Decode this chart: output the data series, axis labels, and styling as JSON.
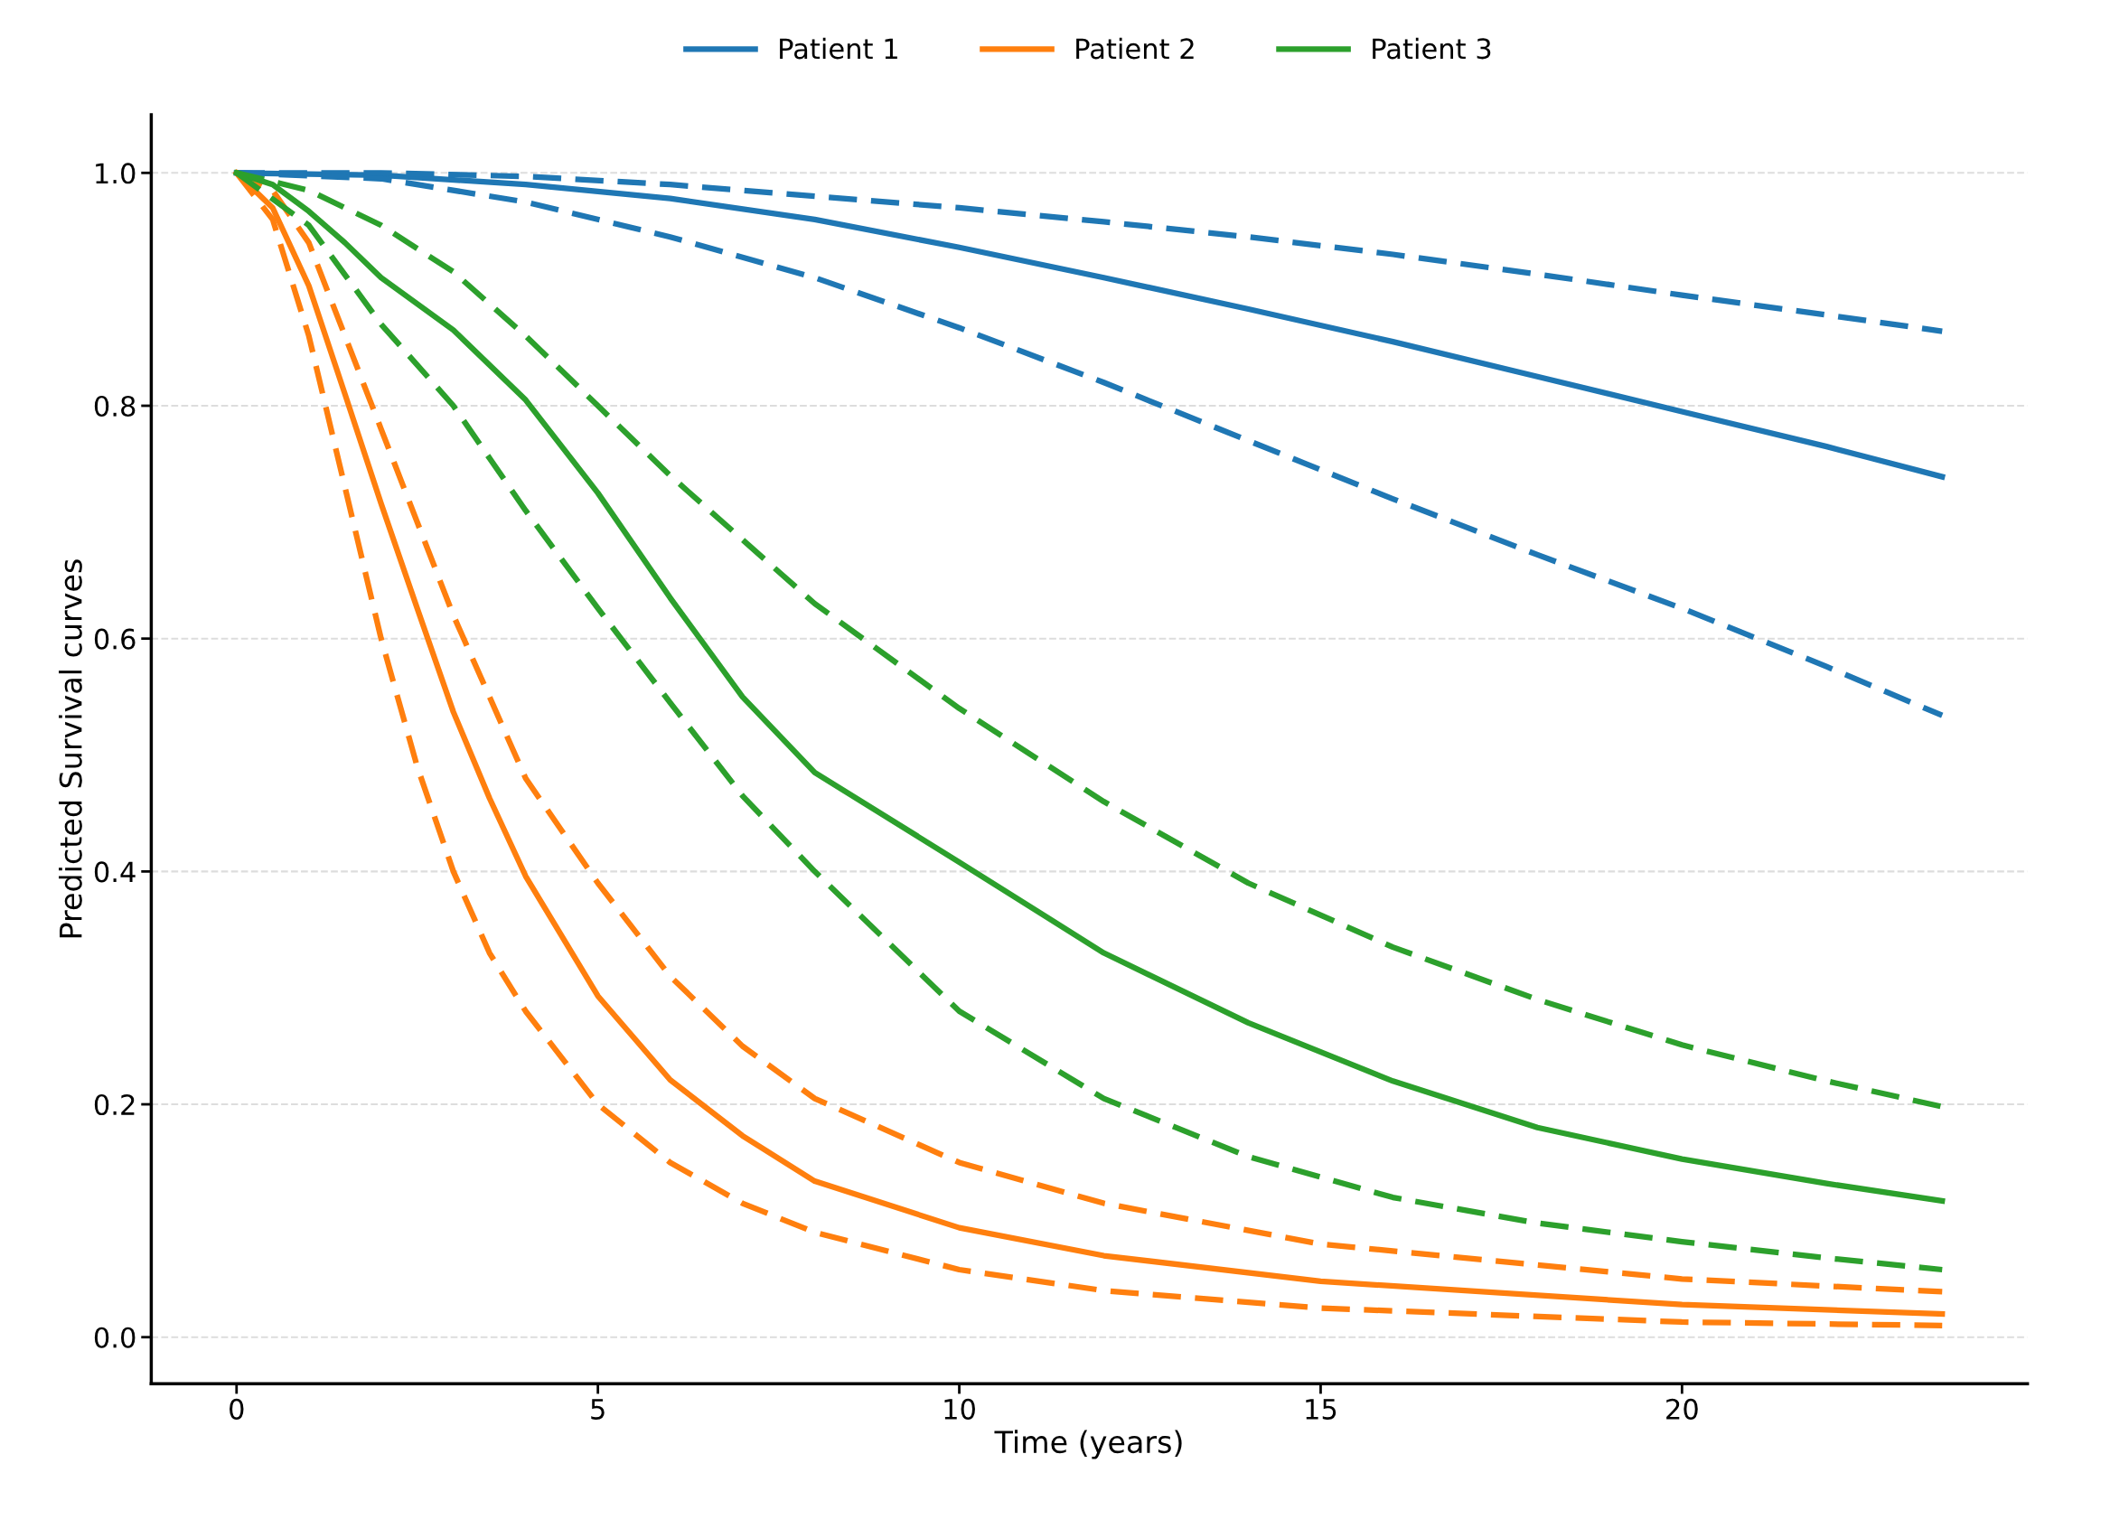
{
  "chart_data": {
    "type": "line",
    "xlabel": "Time (years)",
    "ylabel": "Predicted Survival curves",
    "xlim": [
      -1.18,
      24.78
    ],
    "ylim": [
      -0.04,
      1.05
    ],
    "xticks": [
      0,
      5,
      10,
      15,
      20
    ],
    "yticks": [
      {
        "value": 0,
        "label": "0.0"
      },
      {
        "value": 0.2,
        "label": "0.2"
      },
      {
        "value": 0.4,
        "label": "0.4"
      },
      {
        "value": 0.6,
        "label": "0.6"
      },
      {
        "value": 0.8,
        "label": "0.8"
      },
      {
        "value": 1,
        "label": "1.0"
      }
    ],
    "grid": "y",
    "legend": "top",
    "marker": "none",
    "series": [
      {
        "name": "Patient 1",
        "color": "#1f77b4",
        "line_style": "solid",
        "x": [
          0,
          2,
          4,
          6,
          8,
          10,
          12,
          14,
          16,
          18,
          20,
          22,
          23.6
        ],
        "values": [
          1,
          0.998,
          0.99,
          0.978,
          0.96,
          0.936,
          0.91,
          0.883,
          0.855,
          0.825,
          0.795,
          0.765,
          0.739
        ]
      },
      {
        "color": "#1f77b4",
        "line_style": "dashed",
        "x": [
          0,
          2,
          4,
          6,
          8,
          10,
          12,
          14,
          16,
          18,
          20,
          22,
          23.6
        ],
        "values": [
          1,
          1,
          0.997,
          0.99,
          0.98,
          0.97,
          0.958,
          0.945,
          0.93,
          0.913,
          0.895,
          0.878,
          0.864
        ]
      },
      {
        "color": "#1f77b4",
        "line_style": "dashed",
        "x": [
          0,
          2,
          4,
          6,
          8,
          10,
          12,
          14,
          16,
          18,
          20,
          22,
          23.6
        ],
        "values": [
          1,
          0.995,
          0.975,
          0.945,
          0.91,
          0.867,
          0.82,
          0.77,
          0.72,
          0.672,
          0.626,
          0.576,
          0.534
        ]
      },
      {
        "name": "Patient 2",
        "color": "#ff7f0e",
        "line_style": "solid",
        "x": [
          0,
          0.5,
          1,
          1.5,
          2,
          2.5,
          3,
          3.5,
          4,
          5,
          6,
          7,
          8,
          10,
          12,
          15,
          20,
          23.6
        ],
        "values": [
          1,
          0.97,
          0.903,
          0.81,
          0.716,
          0.626,
          0.537,
          0.463,
          0.396,
          0.293,
          0.221,
          0.173,
          0.134,
          0.094,
          0.07,
          0.048,
          0.028,
          0.02
        ]
      },
      {
        "color": "#ff7f0e",
        "line_style": "dashed",
        "x": [
          0,
          0.5,
          1,
          1.5,
          2,
          2.5,
          3,
          4,
          5,
          6,
          7,
          8,
          10,
          12,
          15,
          20,
          23.6
        ],
        "values": [
          1,
          0.985,
          0.94,
          0.86,
          0.78,
          0.7,
          0.62,
          0.48,
          0.39,
          0.31,
          0.25,
          0.205,
          0.15,
          0.115,
          0.08,
          0.05,
          0.039
        ]
      },
      {
        "color": "#ff7f0e",
        "line_style": "dashed",
        "x": [
          0,
          0.5,
          1,
          1.5,
          2,
          2.5,
          3,
          3.5,
          4,
          5,
          6,
          7,
          8,
          10,
          12,
          15,
          20,
          23.6
        ],
        "values": [
          1,
          0.96,
          0.86,
          0.73,
          0.6,
          0.49,
          0.4,
          0.33,
          0.28,
          0.2,
          0.15,
          0.115,
          0.09,
          0.058,
          0.04,
          0.025,
          0.013,
          0.01
        ]
      },
      {
        "name": "Patient 3",
        "color": "#2ca02c",
        "line_style": "solid",
        "x": [
          0,
          0.5,
          1,
          1.5,
          2,
          3,
          4,
          5,
          6,
          7,
          8,
          10,
          12,
          14,
          16,
          18,
          20,
          22,
          23.6
        ],
        "values": [
          1,
          0.99,
          0.967,
          0.94,
          0.91,
          0.865,
          0.805,
          0.725,
          0.635,
          0.55,
          0.485,
          0.408,
          0.33,
          0.27,
          0.22,
          0.18,
          0.153,
          0.132,
          0.117
        ]
      },
      {
        "color": "#2ca02c",
        "line_style": "dashed",
        "x": [
          0,
          1,
          2,
          3,
          4,
          5,
          6,
          7,
          8,
          10,
          12,
          14,
          16,
          18,
          20,
          22,
          23.6
        ],
        "values": [
          1,
          0.985,
          0.955,
          0.915,
          0.86,
          0.8,
          0.74,
          0.685,
          0.63,
          0.54,
          0.46,
          0.39,
          0.335,
          0.29,
          0.251,
          0.22,
          0.198
        ]
      },
      {
        "color": "#2ca02c",
        "line_style": "dashed",
        "x": [
          0,
          1,
          2,
          3,
          4,
          5,
          6,
          7,
          8,
          10,
          12,
          14,
          16,
          18,
          20,
          22,
          23.6
        ],
        "values": [
          1,
          0.955,
          0.87,
          0.8,
          0.71,
          0.626,
          0.545,
          0.465,
          0.4,
          0.28,
          0.205,
          0.155,
          0.12,
          0.098,
          0.082,
          0.068,
          0.058
        ]
      }
    ]
  }
}
